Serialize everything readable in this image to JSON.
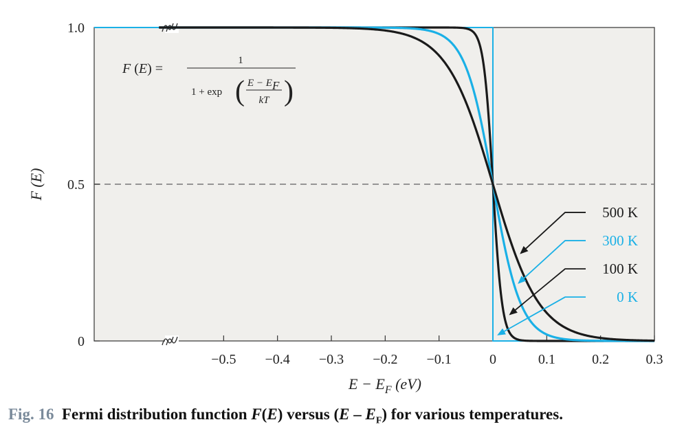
{
  "chart_data": {
    "type": "line",
    "xlabel": "E − E_F (eV)",
    "ylabel": "F (E)",
    "xlim": [
      -0.62,
      0.3
    ],
    "ylim": [
      0,
      1.0
    ],
    "x_ticks": [
      -0.5,
      -0.4,
      -0.3,
      -0.2,
      -0.1,
      0,
      0.1,
      0.2,
      0.3
    ],
    "x_tick_labels": [
      "−0.5",
      "−0.4",
      "−0.3",
      "−0.2",
      "−0.1",
      "0",
      "0.1",
      "0.2",
      "0.3"
    ],
    "y_ticks": [
      0,
      0.5,
      1.0
    ],
    "y_tick_labels": [
      "0",
      "0.5",
      "1.0"
    ],
    "reference_lines": {
      "x": 0,
      "y": 0.5,
      "style": "dashed"
    },
    "axis_break": true,
    "formula": {
      "lhs": "F (E) =",
      "numerator": "1",
      "denominator_prefix": "1 + exp",
      "inner_numerator": "E − E",
      "inner_subscript": "F",
      "inner_denominator": "kT"
    },
    "series": [
      {
        "name": "500 K",
        "kT_eV": 0.0431,
        "color": "#1a1a1a",
        "label_y": 0.41,
        "arrow_target": [
          0.052,
          0.28
        ]
      },
      {
        "name": "300 K",
        "kT_eV": 0.0259,
        "color": "#1ab0e6",
        "label_y": 0.32,
        "arrow_target": [
          0.048,
          0.185
        ]
      },
      {
        "name": "100 K",
        "kT_eV": 0.0086,
        "color": "#1a1a1a",
        "label_y": 0.23,
        "arrow_target": [
          0.032,
          0.085
        ]
      },
      {
        "name": "0 K",
        "kT_eV": 0.0,
        "color": "#1ab0e6",
        "label_y": 0.14,
        "arrow_target": [
          0.01,
          0.02
        ]
      }
    ]
  },
  "caption": {
    "fig_number": "Fig. 16",
    "text": "Fermi distribution function F(E) versus (E – E",
    "sub": "F",
    "tail": ") for various temperatures."
  }
}
